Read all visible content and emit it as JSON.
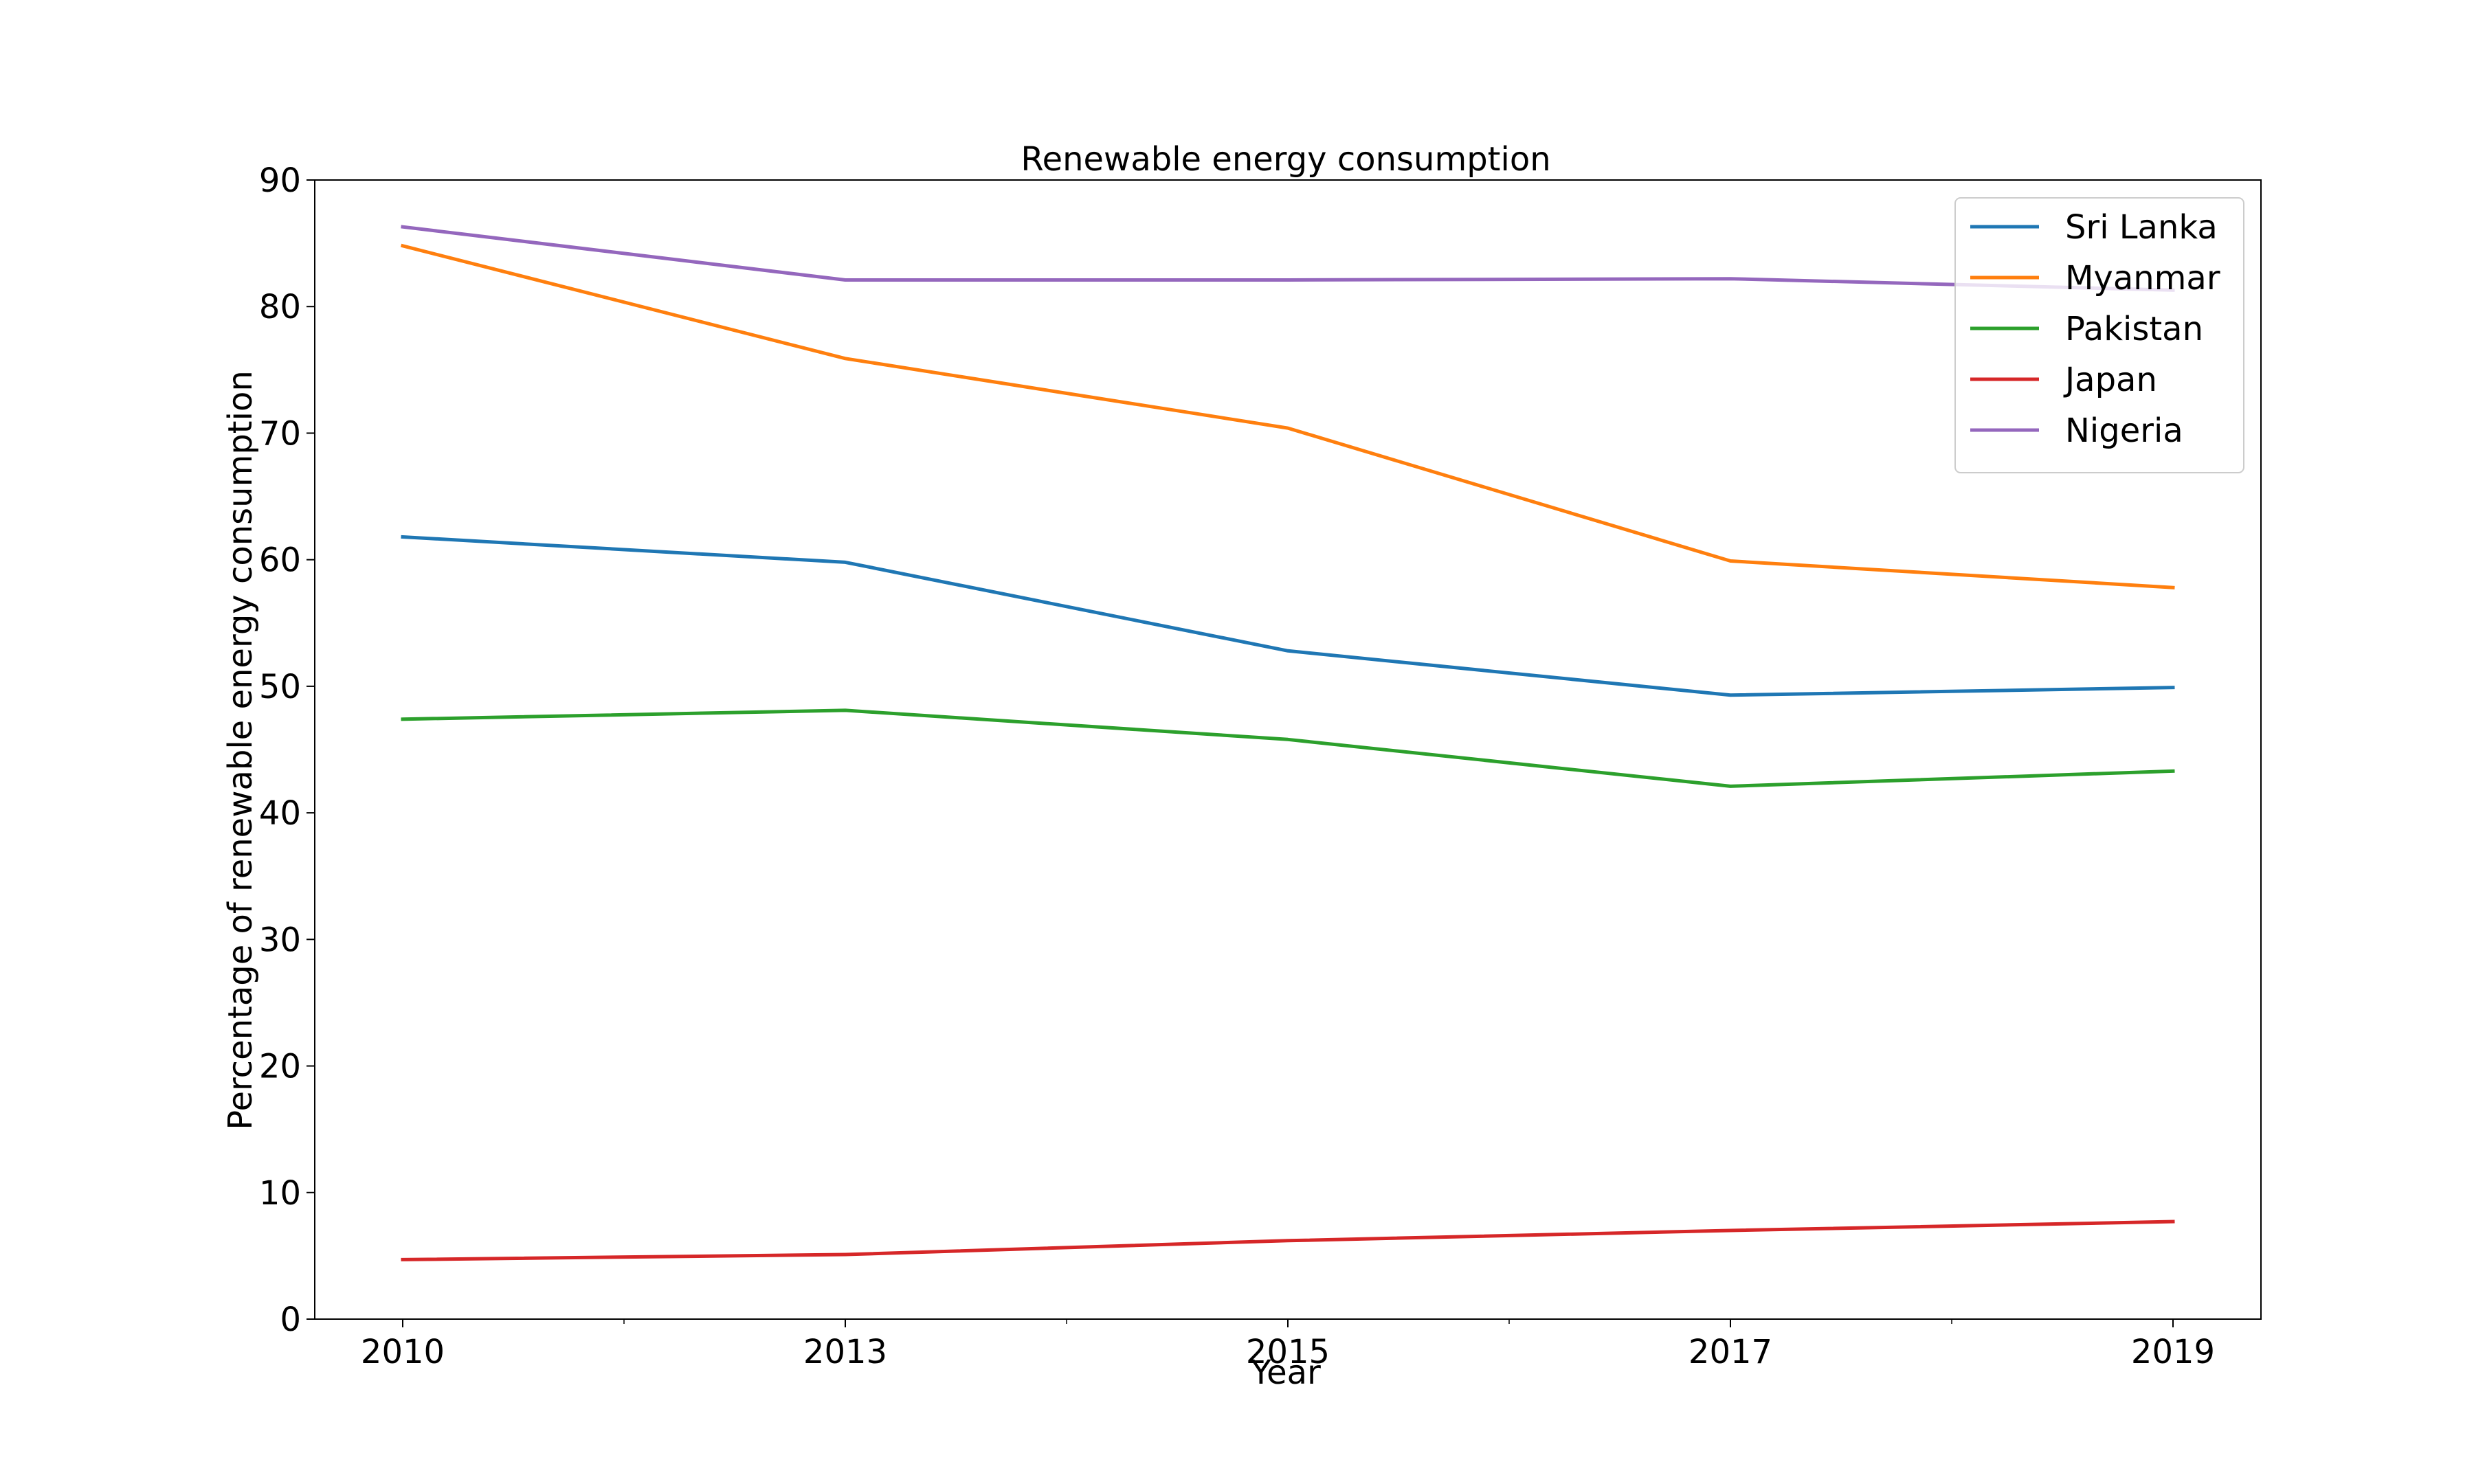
{
  "chart_data": {
    "type": "line",
    "title": "Renewable energy consumption",
    "xlabel": "Year",
    "ylabel": "Percentage of renewable energy consumption",
    "categories": [
      "2010",
      "2013",
      "2015",
      "2017",
      "2019"
    ],
    "ylim": [
      0,
      90
    ],
    "yticks": [
      "0",
      "10",
      "20",
      "30",
      "40",
      "50",
      "60",
      "70",
      "80",
      "90"
    ],
    "grid": false,
    "legend_position": "top-right",
    "series": [
      {
        "name": "Sri Lanka",
        "color": "#1f77b4",
        "values": [
          61.8,
          59.8,
          52.8,
          49.3,
          49.9
        ]
      },
      {
        "name": "Myanmar",
        "color": "#ff7f0e",
        "values": [
          84.8,
          75.9,
          70.4,
          59.9,
          57.8
        ]
      },
      {
        "name": "Pakistan",
        "color": "#2ca02c",
        "values": [
          47.4,
          48.1,
          45.8,
          42.1,
          43.3
        ]
      },
      {
        "name": "Japan",
        "color": "#d62728",
        "values": [
          4.7,
          5.1,
          6.2,
          7.0,
          7.7
        ]
      },
      {
        "name": "Nigeria",
        "color": "#9467bd",
        "values": [
          86.3,
          82.1,
          82.1,
          82.2,
          81.3
        ]
      }
    ]
  }
}
